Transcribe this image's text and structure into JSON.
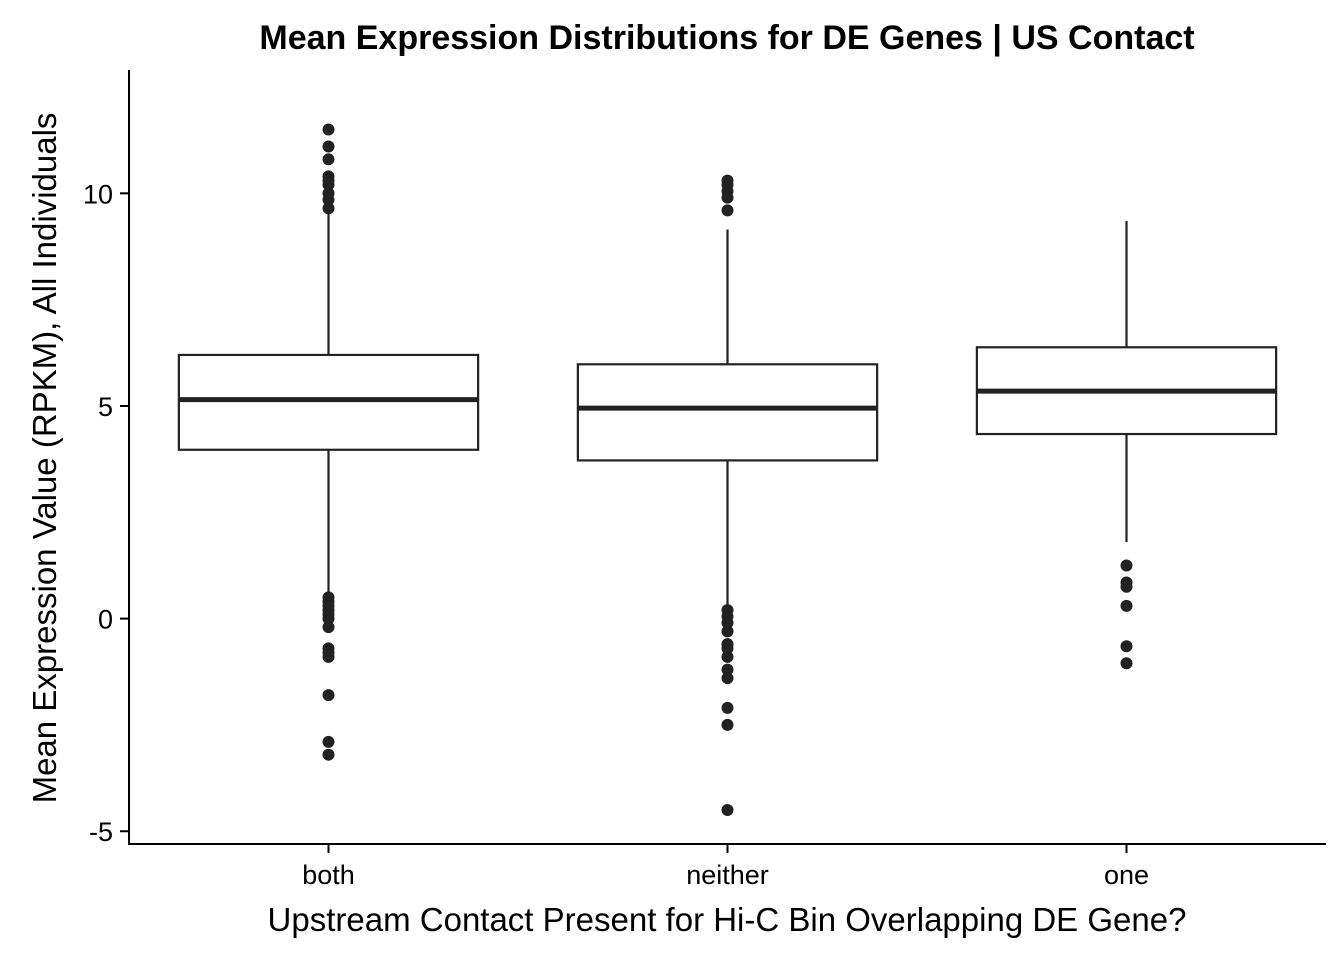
{
  "chart_data": {
    "type": "box",
    "title": "Mean Expression Distributions for DE Genes | US Contact",
    "xlabel": "Upstream Contact Present for Hi-C Bin Overlapping DE Gene?",
    "ylabel": "Mean Expression Value (RPKM), All Individuals",
    "ylim": [
      -5.3,
      12.9
    ],
    "yticks": [
      -5,
      0,
      5,
      10
    ],
    "ytick_labels": [
      "-5",
      "0",
      "5",
      "10"
    ],
    "grid": false,
    "categories": [
      "both",
      "neither",
      "one"
    ],
    "boxes": [
      {
        "category": "both",
        "q1": 3.97,
        "median": 5.15,
        "q3": 6.2,
        "whisker_low": 0.6,
        "whisker_high": 9.6,
        "outliers": [
          11.5,
          11.1,
          10.8,
          10.4,
          10.3,
          10.2,
          10.0,
          9.85,
          9.65,
          0.5,
          0.4,
          0.3,
          0.2,
          0.1,
          0.0,
          -0.2,
          -0.7,
          -0.8,
          -0.9,
          -1.8,
          -2.9,
          -3.2
        ]
      },
      {
        "category": "neither",
        "q1": 3.72,
        "median": 4.95,
        "q3": 5.98,
        "whisker_low": 0.25,
        "whisker_high": 9.15,
        "outliers": [
          10.3,
          10.2,
          10.05,
          9.9,
          9.6,
          0.2,
          0.05,
          -0.1,
          -0.3,
          -0.6,
          -0.7,
          -0.9,
          -1.2,
          -1.4,
          -2.1,
          -2.5,
          -4.5
        ]
      },
      {
        "category": "one",
        "q1": 4.34,
        "median": 5.35,
        "q3": 6.38,
        "whisker_low": 1.8,
        "whisker_high": 9.35,
        "outliers": [
          1.25,
          0.85,
          0.75,
          0.3,
          -0.65,
          -1.05
        ]
      }
    ]
  }
}
